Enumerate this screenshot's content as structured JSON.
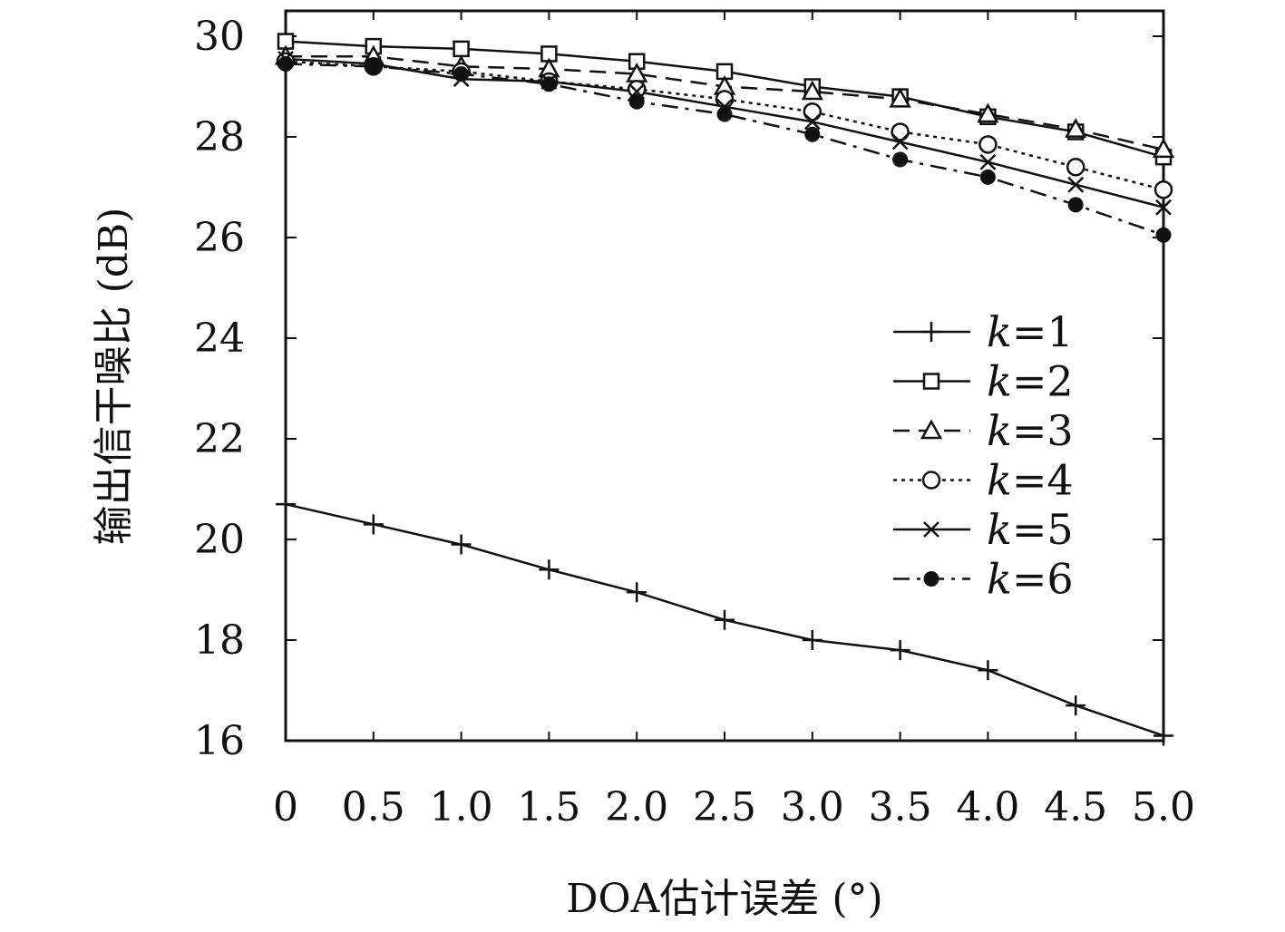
{
  "chart_data": {
    "type": "line",
    "title": "",
    "xlabel": "DOA估计误差 (°)",
    "ylabel": "输出信干噪比 (dB)",
    "x": [
      0,
      0.5,
      1.0,
      1.5,
      2.0,
      2.5,
      3.0,
      3.5,
      4.0,
      4.5,
      5.0
    ],
    "xticklabels": [
      "0",
      "0.5",
      "1.0",
      "1.5",
      "2.0",
      "2.5",
      "3.0",
      "3.5",
      "4.0",
      "4.5",
      "5.0"
    ],
    "yticks": [
      16,
      18,
      20,
      22,
      24,
      26,
      28,
      30
    ],
    "yticklabels": [
      "16",
      "18",
      "20",
      "22",
      "24",
      "26",
      "28",
      "30"
    ],
    "xlim": [
      0,
      5.0
    ],
    "ylim": [
      16,
      30
    ],
    "grid": false,
    "legend_position": "center-right",
    "series": [
      {
        "name": "k=1",
        "legend_var": "k",
        "legend_val": "=1",
        "marker": "plus",
        "dash": "solid",
        "values": [
          20.7,
          20.3,
          19.9,
          19.4,
          18.95,
          18.4,
          18.0,
          17.8,
          17.4,
          16.7,
          16.1
        ]
      },
      {
        "name": "k=2",
        "legend_var": "k",
        "legend_val": "=2",
        "marker": "square",
        "dash": "solid",
        "values": [
          29.9,
          29.8,
          29.75,
          29.65,
          29.5,
          29.3,
          29.0,
          28.8,
          28.4,
          28.1,
          27.6
        ]
      },
      {
        "name": "k=3",
        "legend_var": "k",
        "legend_val": "=3",
        "marker": "triangle",
        "dash": "dashed",
        "values": [
          29.6,
          29.6,
          29.4,
          29.35,
          29.25,
          29.0,
          28.9,
          28.75,
          28.45,
          28.15,
          27.75
        ]
      },
      {
        "name": "k=4",
        "legend_var": "k",
        "legend_val": "=4",
        "marker": "circle",
        "dash": "dotted",
        "values": [
          29.5,
          29.4,
          29.3,
          29.1,
          28.95,
          28.75,
          28.5,
          28.1,
          27.85,
          27.4,
          26.95
        ]
      },
      {
        "name": "k=5",
        "legend_var": "k",
        "legend_val": "=5",
        "marker": "x",
        "dash": "solid",
        "values": [
          29.55,
          29.45,
          29.15,
          29.1,
          28.9,
          28.6,
          28.3,
          27.9,
          27.5,
          27.05,
          26.6
        ]
      },
      {
        "name": "k=6",
        "legend_var": "k",
        "legend_val": "=6",
        "marker": "dot",
        "dash": "dashdot",
        "values": [
          29.45,
          29.4,
          29.25,
          29.05,
          28.7,
          28.45,
          28.05,
          27.55,
          27.2,
          26.65,
          26.05
        ]
      }
    ]
  }
}
